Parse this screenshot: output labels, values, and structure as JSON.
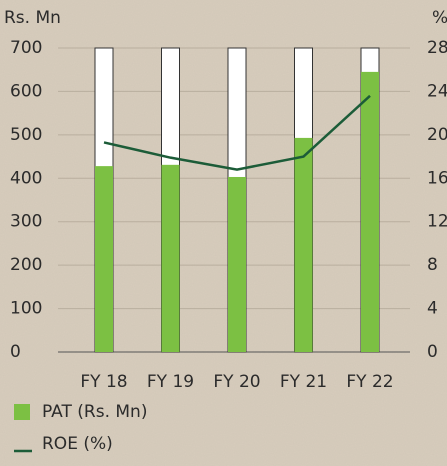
{
  "chart_data": {
    "type": "bar-line",
    "y_label": "Rs. Mn",
    "y2_label": "%",
    "categories": [
      "FY 18",
      "FY 19",
      "FY 20",
      "FY 21",
      "FY 22"
    ],
    "series": [
      {
        "name": "PAT (Rs. Mn)",
        "color": "#7cc043",
        "type": "bar",
        "values": [
          428,
          431,
          403,
          493,
          645
        ]
      },
      {
        "name": "ROE (%)",
        "color": "#1c5c38",
        "type": "line",
        "axis": "y2",
        "values": [
          19.3,
          17.9,
          16.8,
          18.0,
          23.6
        ]
      }
    ],
    "ylim": [
      0,
      700
    ],
    "yticks": [
      0,
      100,
      200,
      300,
      400,
      500,
      600,
      700
    ],
    "y2lim": [
      0,
      28
    ],
    "y2ticks": [
      0,
      4,
      8,
      12,
      16,
      20,
      24,
      28
    ],
    "grid": true
  }
}
